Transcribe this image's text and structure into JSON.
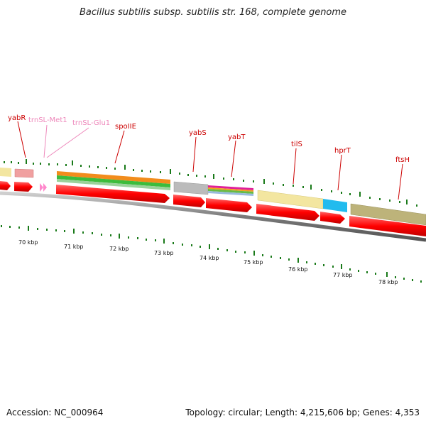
{
  "title": "Bacillus subtilis subsp. subtilis str. 168, complete genome",
  "footer": {
    "accession": "Accession: NC_000964",
    "topology": "Topology: circular; Length: 4,215,606 bp; Genes: 4,353"
  },
  "labels": {
    "yabR": "yabR",
    "trnSL_Met1": "trnSL-Met1",
    "trnSL_Glu1": "trnSL-Glu1",
    "spoIIE": "spoIIE",
    "yabS": "yabS",
    "yabT": "yabT",
    "tilS": "tilS",
    "hprT": "hprT",
    "ftsH": "ftsH"
  },
  "ruler": [
    "70 kbp",
    "71 kbp",
    "72 kbp",
    "73 kbp",
    "74 kbp",
    "75 kbp",
    "76 kbp",
    "77 kbp",
    "78 kbp"
  ],
  "colors": {
    "gene": "#ff0000",
    "gene_label": "#cc0000",
    "trna": "#ff88cc",
    "trna_label": "#ee88bb",
    "tick": "#1a7a1a",
    "backbone": "#888888"
  }
}
